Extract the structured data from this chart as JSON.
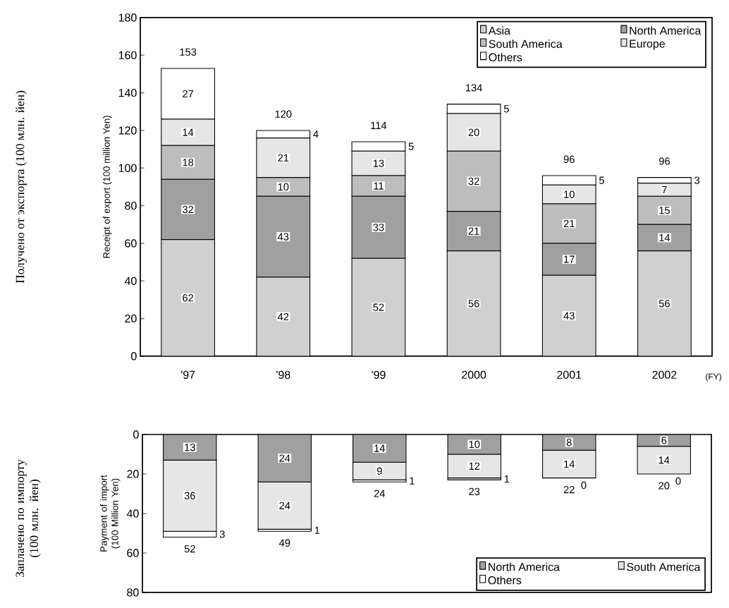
{
  "chart_data": [
    {
      "type": "bar",
      "stacked": true,
      "ylabel": "Receipt of export (100 million Yen)",
      "categories": [
        "'97",
        "'98",
        "'99",
        "2000",
        "2001",
        "2002"
      ],
      "series": [
        {
          "name": "Asia",
          "color": "#d0d0d0",
          "values": [
            62,
            42,
            52,
            56,
            43,
            56
          ]
        },
        {
          "name": "North America",
          "color": "#a0a0a0",
          "values": [
            32,
            43,
            33,
            21,
            17,
            14
          ]
        },
        {
          "name": "South America",
          "color": "#bdbdbd",
          "values": [
            18,
            10,
            11,
            32,
            21,
            15
          ]
        },
        {
          "name": "Europe",
          "color": "#e6e6e6",
          "values": [
            14,
            21,
            13,
            20,
            10,
            7
          ]
        },
        {
          "name": "Others",
          "color": "#ffffff",
          "values": [
            27,
            4,
            5,
            5,
            5,
            3
          ]
        }
      ],
      "totals": [
        "153",
        "120",
        "114",
        "134",
        "96",
        "96"
      ],
      "data_labels": true,
      "ylim": [
        0,
        180
      ],
      "yticks": [
        0,
        20,
        40,
        60,
        80,
        100,
        120,
        140,
        160,
        180
      ],
      "legend": "top right",
      "annotations": [
        "Получено от экспорта (100 млн. йен)",
        "(FY)"
      ]
    },
    {
      "type": "bar",
      "stacked": true,
      "ylabel": "Payment of import (100 Million Yen)",
      "categories": [
        null,
        null,
        null,
        null,
        null,
        null
      ],
      "series": [
        {
          "name": "North America",
          "color": "#a0a0a0",
          "values": [
            13,
            24,
            14,
            10,
            8,
            6
          ],
          "value_labels": [
            "13",
            "24",
            "14",
            "10",
            "8",
            "6"
          ]
        },
        {
          "name": "South America",
          "color": "#e6e6e6",
          "values": [
            36,
            24,
            9,
            12,
            14,
            14
          ],
          "value_labels": [
            "36",
            "24",
            "9",
            "12",
            "14",
            "14"
          ]
        },
        {
          "name": "Others",
          "color": "#ffffff",
          "values": [
            3,
            1,
            1,
            1,
            0,
            0
          ],
          "value_labels": [
            "3",
            "1",
            "1",
            "1",
            null,
            null
          ]
        }
      ],
      "totals": [
        "52",
        "49",
        "24",
        "23",
        "22",
        "20"
      ],
      "ylim": [
        80,
        0
      ],
      "yticks": [
        0,
        20,
        40,
        60,
        80
      ],
      "tick_labels": "y",
      "legend": "bottom right",
      "annotations": [
        "Заплачено по импорту (100 млн. йен)",
        "0",
        "0"
      ]
    }
  ]
}
